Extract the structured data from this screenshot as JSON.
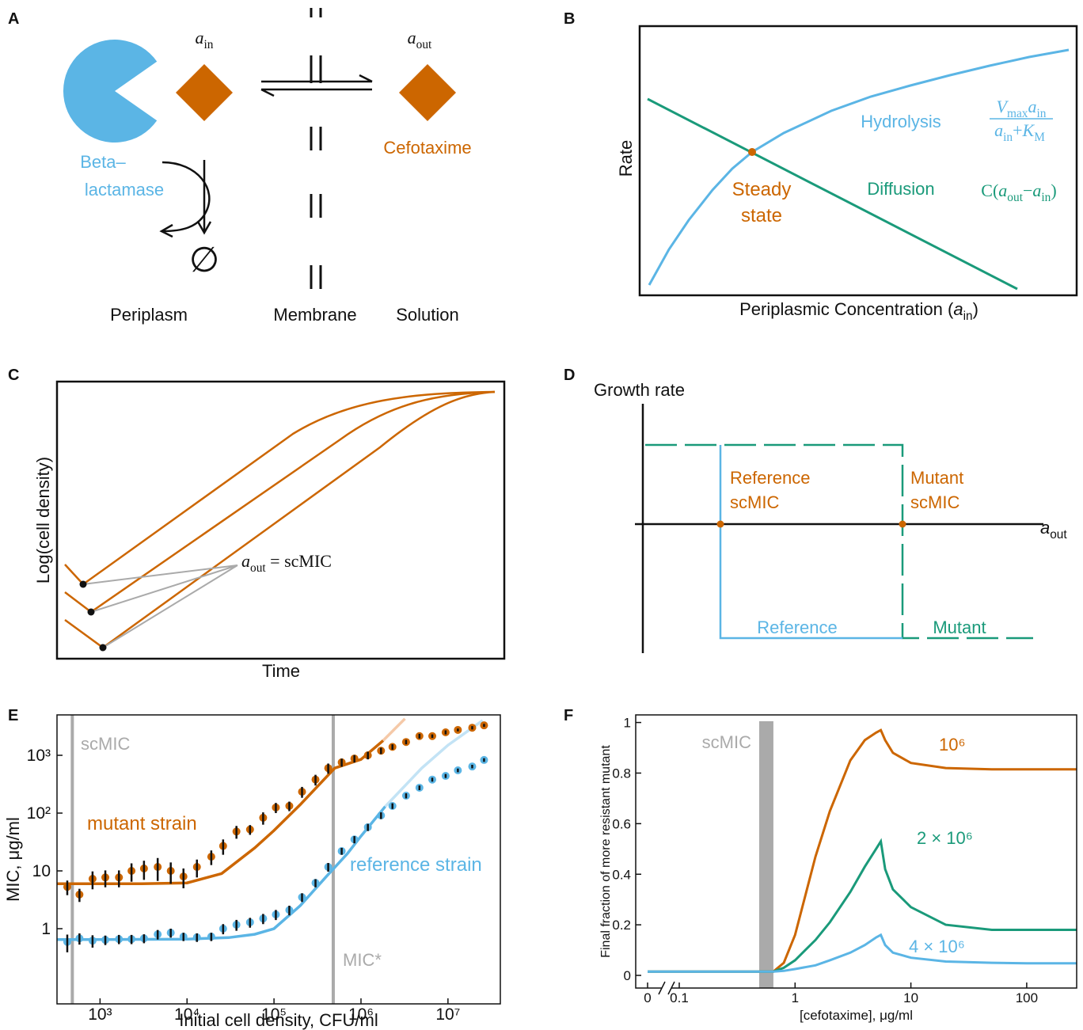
{
  "panel_labels": [
    "A",
    "B",
    "C",
    "D",
    "E",
    "F"
  ],
  "panel_a": {
    "a_in": [
      {
        "s": "a",
        "sub": "in"
      }
    ],
    "a_out": [
      {
        "s": "a",
        "sub": "out"
      }
    ],
    "enzyme": [
      "Beta–",
      "lactamase"
    ],
    "drug": "Cefotaxime",
    "product": "∅",
    "compartments": [
      "Periplasm",
      "Membrane",
      "Solution"
    ]
  },
  "panel_b": {
    "y_label": "Rate",
    "x_label": [
      {
        "s": "Periplasmic Concentration ("
      },
      {
        "s": "a",
        "sub": "in"
      },
      {
        "s": ")"
      }
    ],
    "hydrolysis": "Hydrolysis",
    "hydrolysis_numerator": [
      {
        "s": "V",
        "sub": "max"
      },
      {
        "s": "a",
        "sub": "in"
      }
    ],
    "hydrolysis_denominator": [
      {
        "s": "a",
        "sub": "in"
      },
      {
        "s": "+"
      },
      {
        "s": "K",
        "sub": "M"
      }
    ],
    "steady_state": [
      "Steady",
      "state"
    ],
    "diffusion": "Diffusion",
    "diffusion_formula": [
      {
        "s": "C("
      },
      {
        "s": "a",
        "sub": "out"
      },
      {
        "s": "−"
      },
      {
        "s": "a",
        "sub": "in"
      },
      {
        "s": ")"
      }
    ]
  },
  "panel_c": {
    "y_label": "Log(cell density)",
    "x_label": "Time",
    "annotation": [
      {
        "s": "a",
        "sub": "out"
      },
      {
        "s": " = scMIC"
      }
    ]
  },
  "panel_d": {
    "y_label": "Growth rate",
    "x_label": [
      {
        "s": "a",
        "sub": "out"
      }
    ],
    "reference_mic": [
      "Reference",
      "scMIC"
    ],
    "mutant_mic": [
      "Mutant",
      "scMIC"
    ],
    "reference": "Reference",
    "mutant": "Mutant"
  },
  "chart_data": [
    {
      "type": "scatter",
      "x_label": "Initial cell density, CFU/ml",
      "y_label": "MIC, μg/ml",
      "log_x": true,
      "log_y": true,
      "xlim": [
        320,
        40000000
      ],
      "ylim": [
        0.05,
        5000
      ],
      "xticks": [
        {
          "value": 1000,
          "label": "10³"
        },
        {
          "value": 10000,
          "label": "10⁴"
        },
        {
          "value": 100000,
          "label": "10⁵"
        },
        {
          "value": 1000000,
          "label": "10⁶"
        },
        {
          "value": 10000000,
          "label": "10⁷"
        }
      ],
      "yticks": [
        1,
        10,
        {
          "value": 100,
          "label": "10²"
        },
        {
          "value": 1000,
          "label": "10³"
        }
      ],
      "x": [
        420,
        580,
        820,
        1150,
        1650,
        2300,
        3200,
        4600,
        6500,
        9100,
        13000,
        19000,
        26000,
        37000,
        53000,
        75000,
        105000,
        150000,
        210000,
        300000,
        420000,
        600000,
        840000,
        1200000,
        1700000,
        2300000,
        3300000,
        4700000,
        6600000,
        9400000,
        13000000,
        19000000,
        26000000
      ],
      "series": [
        {
          "name": "mutant strain",
          "color": "#cc6600",
          "values": [
            5.3,
            3.9,
            7.3,
            7.7,
            7.7,
            10,
            11,
            11.7,
            10,
            8,
            11.7,
            17.6,
            27,
            48,
            52,
            83,
            125,
            133,
            234,
            380,
            600,
            755,
            880,
            1000,
            1200,
            1400,
            1700,
            2150,
            2150,
            2500,
            2750,
            3000,
            3300
          ],
          "errors": [
            1.5,
            1.0,
            2.5,
            2.5,
            2.5,
            3.5,
            4,
            5,
            4,
            3,
            4,
            5,
            8,
            12,
            10,
            20,
            25,
            25,
            50,
            80,
            120,
            120,
            130,
            150,
            150,
            150,
            150,
            200,
            150,
            200,
            150,
            200,
            200
          ]
        },
        {
          "name": "reference strain",
          "color": "#5bb5e5",
          "values": [
            0.59,
            0.68,
            0.62,
            0.64,
            0.66,
            0.66,
            0.68,
            0.8,
            0.85,
            0.73,
            0.71,
            0.73,
            1.0,
            1.17,
            1.29,
            1.5,
            1.76,
            2.1,
            3.5,
            6.2,
            11.7,
            22,
            35,
            57,
            91,
            133,
            200,
            275,
            380,
            440,
            550,
            640,
            830
          ],
          "errors": [
            0.2,
            0.15,
            0.15,
            0.12,
            0.12,
            0.12,
            0.12,
            0.15,
            0.15,
            0.12,
            0.12,
            0.12,
            0.2,
            0.25,
            0.25,
            0.3,
            0.35,
            0.4,
            0.6,
            1,
            2,
            3,
            5,
            8,
            12,
            15,
            20,
            25,
            30,
            35,
            40,
            45,
            60
          ]
        }
      ],
      "lines": [
        {
          "color": "#cc6600",
          "x": [
            320,
            1000,
            3000,
            10000,
            25000,
            60000,
            100000,
            200000,
            500000,
            1000000,
            1800000
          ],
          "values": [
            6,
            6,
            6,
            6.2,
            9,
            25,
            50,
            140,
            600,
            850,
            1800
          ]
        },
        {
          "color": "#f5c9a8",
          "x": [
            1800000,
            3200000
          ],
          "values": [
            1800,
            4300
          ]
        },
        {
          "color": "#5bb5e5",
          "x": [
            320,
            1000,
            10000,
            30000,
            60000,
            100000,
            200000,
            400000,
            700000,
            1000000,
            1900000
          ],
          "values": [
            0.65,
            0.65,
            0.66,
            0.7,
            0.8,
            1.0,
            2.5,
            8,
            20,
            40,
            130
          ]
        },
        {
          "color": "#c3e3f5",
          "x": [
            1900000,
            5000000,
            10000000,
            25000000
          ],
          "values": [
            130,
            600,
            1500,
            4000
          ]
        }
      ],
      "vlines": [
        {
          "value": 480,
          "label": "scMIC"
        },
        {
          "value": 480000,
          "label": "MIC*"
        }
      ],
      "vline_color": "#aaaaaa"
    },
    {
      "type": "line",
      "x_label": "[cefotaxime], μg/ml",
      "y_label": "Final fraction of more resistant mutant",
      "log_x": true,
      "x_break": true,
      "xlim": [
        0.1,
        270
      ],
      "ylim": [
        -0.05,
        1.03
      ],
      "xticks": [
        0,
        0.1,
        1,
        10,
        100
      ],
      "yticks": [
        0,
        0.2,
        0.4,
        0.6,
        0.8,
        1
      ],
      "band": {
        "x": [
          0.49,
          0.65
        ],
        "label": "scMIC",
        "color": "#aaaaaa"
      },
      "x": [
        0,
        0.1,
        0.65,
        0.8,
        1,
        1.5,
        2,
        3,
        4,
        5,
        5.5,
        6,
        7,
        10,
        20,
        50,
        100,
        270
      ],
      "series": [
        {
          "name": "10⁶",
          "color": "#cc6600",
          "values": [
            0.015,
            0.015,
            0.015,
            0.05,
            0.16,
            0.47,
            0.65,
            0.85,
            0.93,
            0.96,
            0.97,
            0.93,
            0.88,
            0.84,
            0.82,
            0.815,
            0.815,
            0.815
          ]
        },
        {
          "name": "2 × 10⁶",
          "color": "#1a9a7a",
          "values": [
            0.015,
            0.015,
            0.015,
            0.03,
            0.06,
            0.14,
            0.21,
            0.33,
            0.43,
            0.5,
            0.53,
            0.42,
            0.34,
            0.27,
            0.2,
            0.18,
            0.18,
            0.18
          ]
        },
        {
          "name": "4 × 10⁶",
          "color": "#5bb5e5",
          "values": [
            0.015,
            0.015,
            0.015,
            0.018,
            0.025,
            0.04,
            0.06,
            0.09,
            0.12,
            0.15,
            0.16,
            0.12,
            0.09,
            0.07,
            0.055,
            0.05,
            0.048,
            0.048
          ]
        }
      ]
    }
  ]
}
